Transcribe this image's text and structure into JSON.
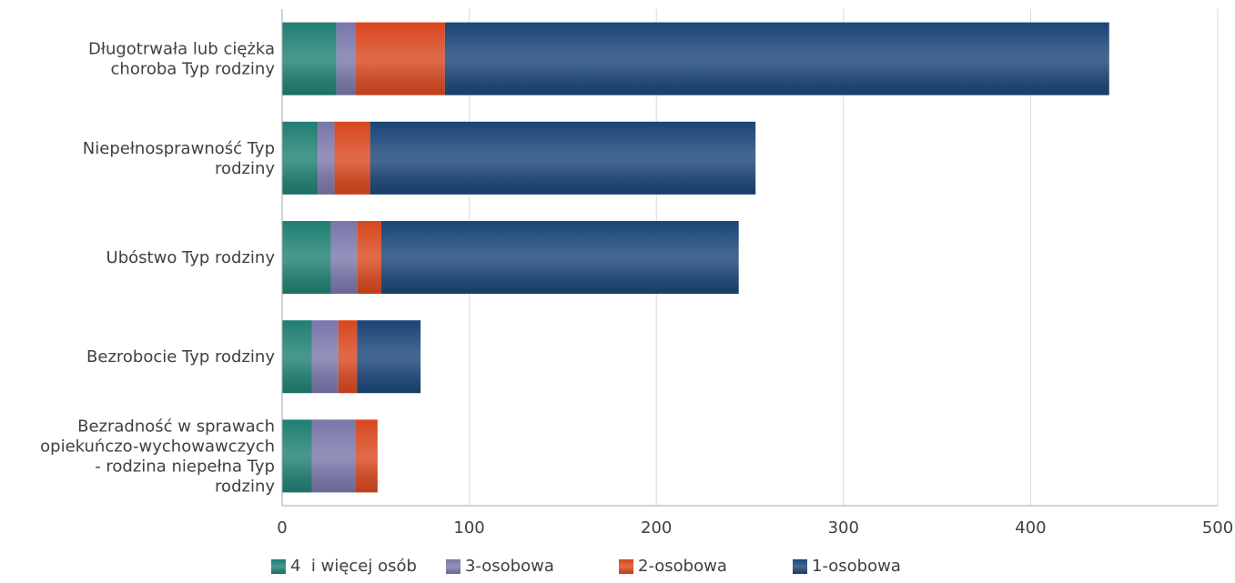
{
  "chart_data": {
    "type": "bar",
    "orientation": "horizontal",
    "stacked": true,
    "categories": [
      [
        "Długotrwała lub ciężka",
        "choroba Typ rodziny"
      ],
      [
        "Niepełnosprawność Typ",
        "rodziny"
      ],
      [
        "Ubóstwo Typ rodziny"
      ],
      [
        "Bezrobocie Typ rodziny"
      ],
      [
        "Bezradność w sprawach",
        "opiekuńczo-wychowawczych",
        "- rodzina niepełna Typ",
        "rodziny"
      ]
    ],
    "series": [
      {
        "name": "4  i więcej osób",
        "color": "#1f7f72",
        "values": [
          29,
          19,
          26,
          16,
          16
        ]
      },
      {
        "name": "3-osobowa",
        "color": "#7a76ab",
        "values": [
          10,
          9,
          14,
          14,
          23
        ]
      },
      {
        "name": "2-osobowa",
        "color": "#d8471d",
        "values": [
          48,
          19,
          13,
          10,
          12
        ]
      },
      {
        "name": "1-osobowa",
        "color": "#1a4577",
        "values": [
          355,
          206,
          191,
          34,
          0
        ]
      }
    ],
    "xlim": [
      0,
      500
    ],
    "xticks": [
      0,
      100,
      200,
      300,
      400,
      500
    ],
    "grid": true,
    "legend_position": "bottom"
  }
}
